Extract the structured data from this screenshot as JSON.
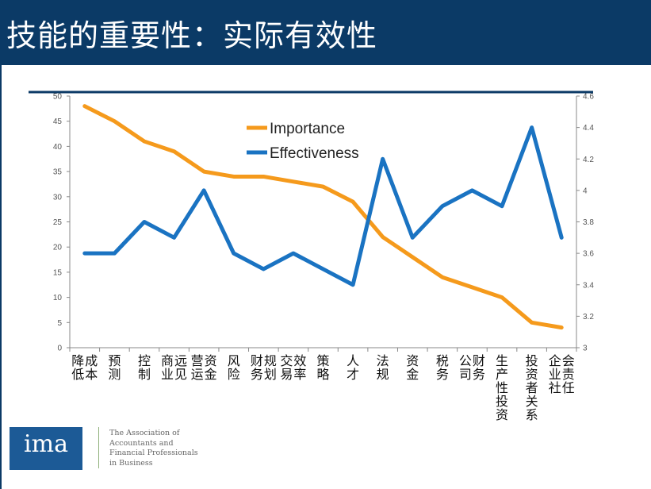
{
  "slide": {
    "title": "技能的重要性：实际有效性"
  },
  "logo": {
    "text": "ima",
    "tagline_lines": [
      "The Association of",
      "Accountants and",
      "Financial Professionals",
      "in Business"
    ]
  },
  "chart_data": {
    "type": "line",
    "categories": [
      "降低成本",
      "预测",
      "控制",
      "商业远见",
      "营运资金",
      "风险",
      "财务规划",
      "交易效率",
      "策略",
      "人才",
      "法规",
      "资金",
      "税务",
      "公司财务",
      "生产性投资",
      "投资者关系",
      "企业社会责任"
    ],
    "series": [
      {
        "name": "Importance",
        "axis": "left",
        "color": "#f59a1c",
        "values": [
          48,
          45,
          41,
          39,
          35,
          34,
          34,
          33,
          32,
          29,
          22,
          18,
          14,
          12,
          10,
          5,
          4
        ]
      },
      {
        "name": "Effectiveness",
        "axis": "right",
        "color": "#1a73c2",
        "values": [
          3.6,
          3.6,
          3.8,
          3.7,
          4.0,
          3.6,
          3.5,
          3.6,
          3.5,
          3.4,
          4.2,
          3.7,
          3.9,
          4.0,
          3.9,
          4.4,
          3.7
        ]
      }
    ],
    "y_left": {
      "ylim": [
        0,
        50
      ],
      "ticks": [
        "0",
        "5",
        "10",
        "15",
        "20",
        "25",
        "30",
        "35",
        "40",
        "45",
        "50"
      ]
    },
    "y_right": {
      "ylim": [
        3,
        4.6
      ],
      "ticks": [
        "3",
        "3.2",
        "3.4",
        "3.6",
        "3.8",
        "4",
        "4.2",
        "4.4",
        "4.6"
      ]
    },
    "legend_position": "top-center",
    "grid": false
  }
}
